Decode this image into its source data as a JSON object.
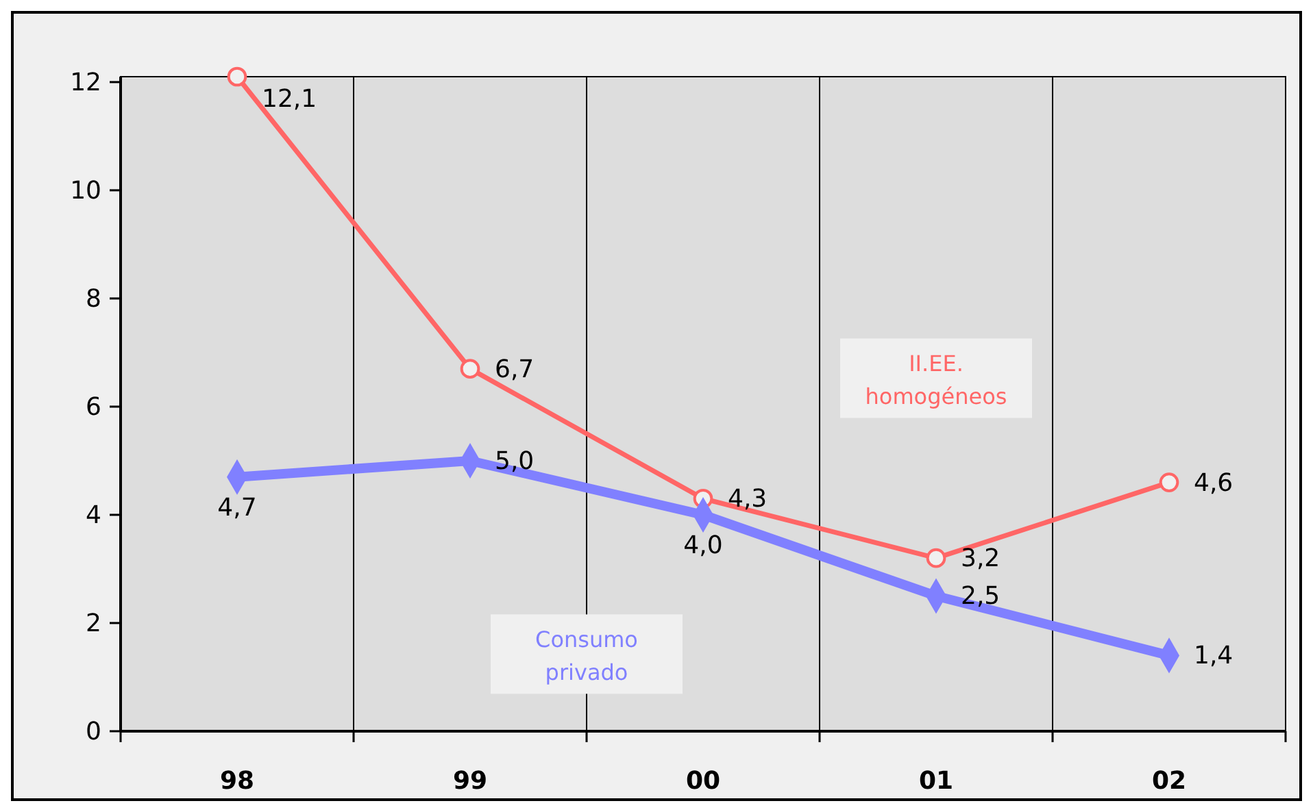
{
  "chart_data": {
    "type": "line",
    "categories": [
      "98",
      "99",
      "00",
      "01",
      "02"
    ],
    "series": [
      {
        "name": "II.EE. homogéneos",
        "color": "#ff6666",
        "values": [
          12.1,
          6.7,
          4.3,
          3.2,
          4.6
        ],
        "value_labels": [
          "12,1",
          "6,7",
          "4,3",
          "3,2",
          "4,6"
        ],
        "marker": "circle"
      },
      {
        "name": "Consumo privado",
        "color": "#8080ff",
        "values": [
          4.7,
          5.0,
          4.0,
          2.5,
          1.4
        ],
        "value_labels": [
          "4,7",
          "5,0",
          "4,0",
          "2,5",
          "1,4"
        ],
        "marker": "diamond"
      }
    ],
    "ylim": [
      0,
      12.1
    ],
    "yticks": [
      0,
      2,
      4,
      6,
      8,
      10,
      12
    ],
    "grid": "x"
  }
}
